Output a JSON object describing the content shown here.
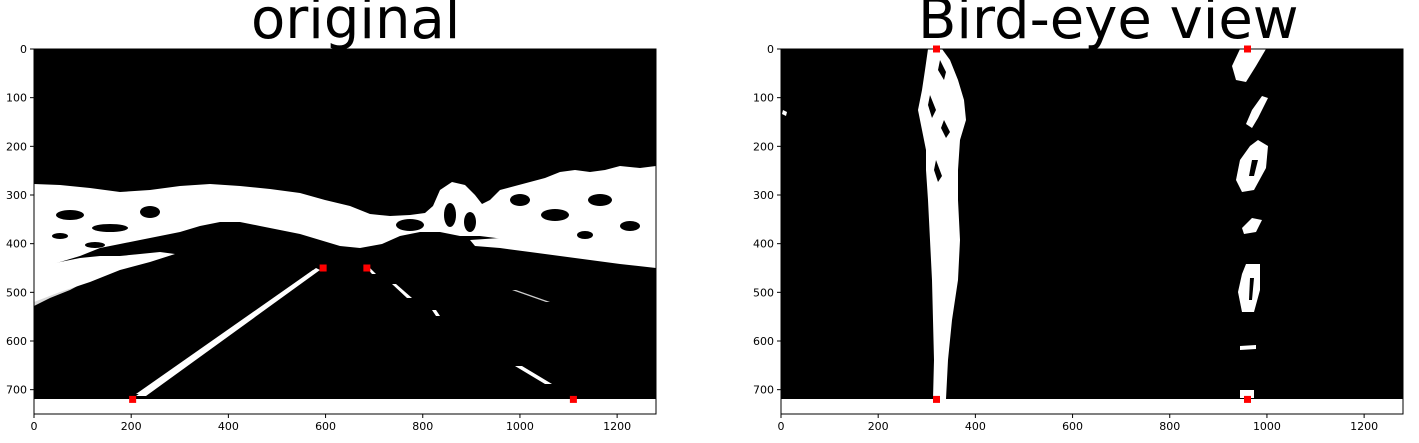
{
  "chart_data": [
    {
      "type": "image",
      "title": "original",
      "xlim": [
        0,
        1280
      ],
      "ylim": [
        750,
        0
      ],
      "x_ticks": [
        0,
        200,
        400,
        600,
        800,
        1000,
        1200
      ],
      "y_ticks": [
        0,
        100,
        200,
        300,
        400,
        500,
        600,
        700
      ],
      "image_height": 720,
      "colors": {
        "background": "#000000",
        "foreground": "#ffffff",
        "marker": "#ff0000"
      },
      "markers": [
        {
          "x": 595,
          "y": 450
        },
        {
          "x": 685,
          "y": 450
        },
        {
          "x": 203,
          "y": 720
        },
        {
          "x": 1110,
          "y": 720
        }
      ]
    },
    {
      "type": "image",
      "title": "Bird-eye view",
      "xlim": [
        0,
        1280
      ],
      "ylim": [
        750,
        0
      ],
      "x_ticks": [
        0,
        200,
        400,
        600,
        800,
        1000,
        1200
      ],
      "y_ticks": [
        0,
        100,
        200,
        300,
        400,
        500,
        600,
        700
      ],
      "image_height": 720,
      "colors": {
        "background": "#000000",
        "foreground": "#ffffff",
        "marker": "#ff0000"
      },
      "markers": [
        {
          "x": 320,
          "y": 0
        },
        {
          "x": 960,
          "y": 0
        },
        {
          "x": 320,
          "y": 720
        },
        {
          "x": 960,
          "y": 720
        }
      ]
    }
  ]
}
